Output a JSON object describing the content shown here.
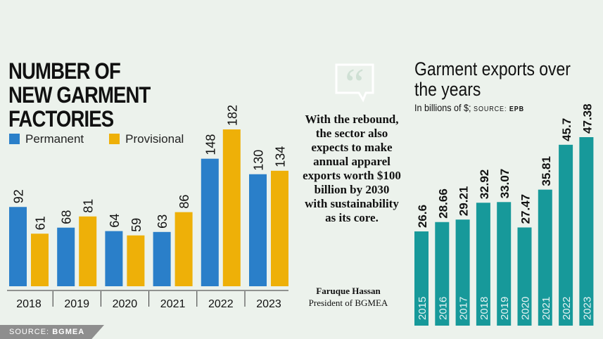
{
  "chart_data": [
    {
      "type": "bar",
      "title": "NUMBER OF NEW GARMENT FACTORIES",
      "categories": [
        "2018",
        "2019",
        "2020",
        "2021",
        "2022",
        "2023"
      ],
      "series": [
        {
          "name": "Permanent",
          "color": "#2a7fc9",
          "values": [
            92,
            68,
            64,
            63,
            148,
            130
          ]
        },
        {
          "name": "Provisional",
          "color": "#eeb008",
          "values": [
            61,
            81,
            59,
            86,
            182,
            134
          ]
        }
      ],
      "ylim": [
        0,
        182
      ],
      "grid": false,
      "legend": "top-left",
      "source_label": "SOURCE:",
      "source": "BGMEA"
    },
    {
      "type": "bar",
      "title": "Garment exports over the years",
      "subtitle": "In billions of $;",
      "source_label": "SOURCE:",
      "source": "EPB",
      "color": "#17999a",
      "categories": [
        "2015",
        "2016",
        "2017",
        "2018",
        "2019",
        "2020",
        "2021",
        "2022",
        "2023"
      ],
      "values": [
        26.6,
        28.66,
        29.21,
        32.92,
        33.07,
        27.47,
        35.81,
        45.7,
        47.38
      ],
      "value_labels": [
        "26.6",
        "28.66",
        "29.21",
        "32.92",
        "33.07",
        "27.47",
        "35.81",
        "45.7",
        "47.38"
      ],
      "grid": false
    }
  ],
  "quote": {
    "text": "With the rebound, the sector also expects to make annual apparel exports worth $100 billion by 2030 with sustainability as its core.",
    "author": "Faruque Hassan",
    "role": "President of BGMEA",
    "icon": "quote-bubble-icon"
  }
}
